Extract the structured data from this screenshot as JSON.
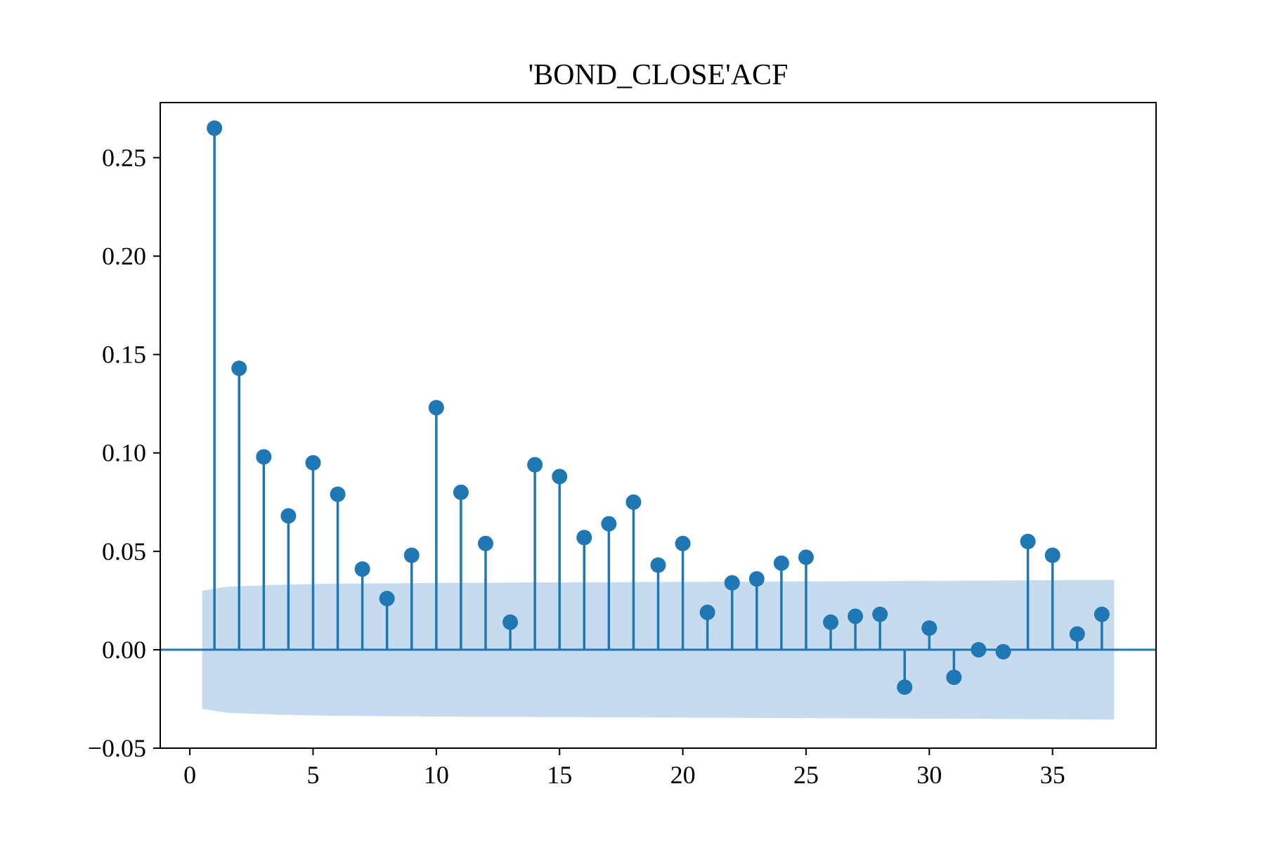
{
  "chart_data": {
    "type": "stem",
    "title": "'BOND_CLOSE'ACF",
    "xlabel": "",
    "ylabel": "",
    "xlim": [
      -1.2,
      39.2
    ],
    "ylim": [
      -0.05,
      0.278
    ],
    "x_ticks": [
      0,
      5,
      10,
      15,
      20,
      25,
      30,
      35
    ],
    "y_ticks": [
      -0.05,
      0.0,
      0.05,
      0.1,
      0.15,
      0.2,
      0.25
    ],
    "y_tick_labels": [
      "−0.05",
      "0.00",
      "0.05",
      "0.10",
      "0.15",
      "0.20",
      "0.25"
    ],
    "grid": false,
    "lags": [
      1,
      2,
      3,
      4,
      5,
      6,
      7,
      8,
      9,
      10,
      11,
      12,
      13,
      14,
      15,
      16,
      17,
      18,
      19,
      20,
      21,
      22,
      23,
      24,
      25,
      26,
      27,
      28,
      29,
      30,
      31,
      32,
      33,
      34,
      35,
      36,
      37
    ],
    "values": [
      0.265,
      0.143,
      0.098,
      0.068,
      0.095,
      0.079,
      0.041,
      0.026,
      0.048,
      0.123,
      0.08,
      0.054,
      0.014,
      0.094,
      0.088,
      0.057,
      0.064,
      0.075,
      0.043,
      0.054,
      0.019,
      0.034,
      0.036,
      0.044,
      0.047,
      0.014,
      0.017,
      0.018,
      -0.019,
      0.011,
      -0.014,
      0.0,
      -0.001,
      0.055,
      0.048,
      0.008,
      0.018
    ],
    "confidence_band": {
      "x": [
        0.5,
        1.5,
        2.5,
        3.5,
        5.5,
        10.5,
        20.5,
        30.5,
        37.5
      ],
      "upper": [
        0.03,
        0.032,
        0.0325,
        0.033,
        0.0335,
        0.034,
        0.0345,
        0.035,
        0.0355
      ],
      "lower": [
        -0.03,
        -0.032,
        -0.0325,
        -0.033,
        -0.0335,
        -0.034,
        -0.0345,
        -0.035,
        -0.0355
      ]
    },
    "colors": {
      "stem": "#1f77b4",
      "marker": "#1f77b4",
      "baseline": "#1f77b4",
      "band": "#c6dbed"
    }
  }
}
